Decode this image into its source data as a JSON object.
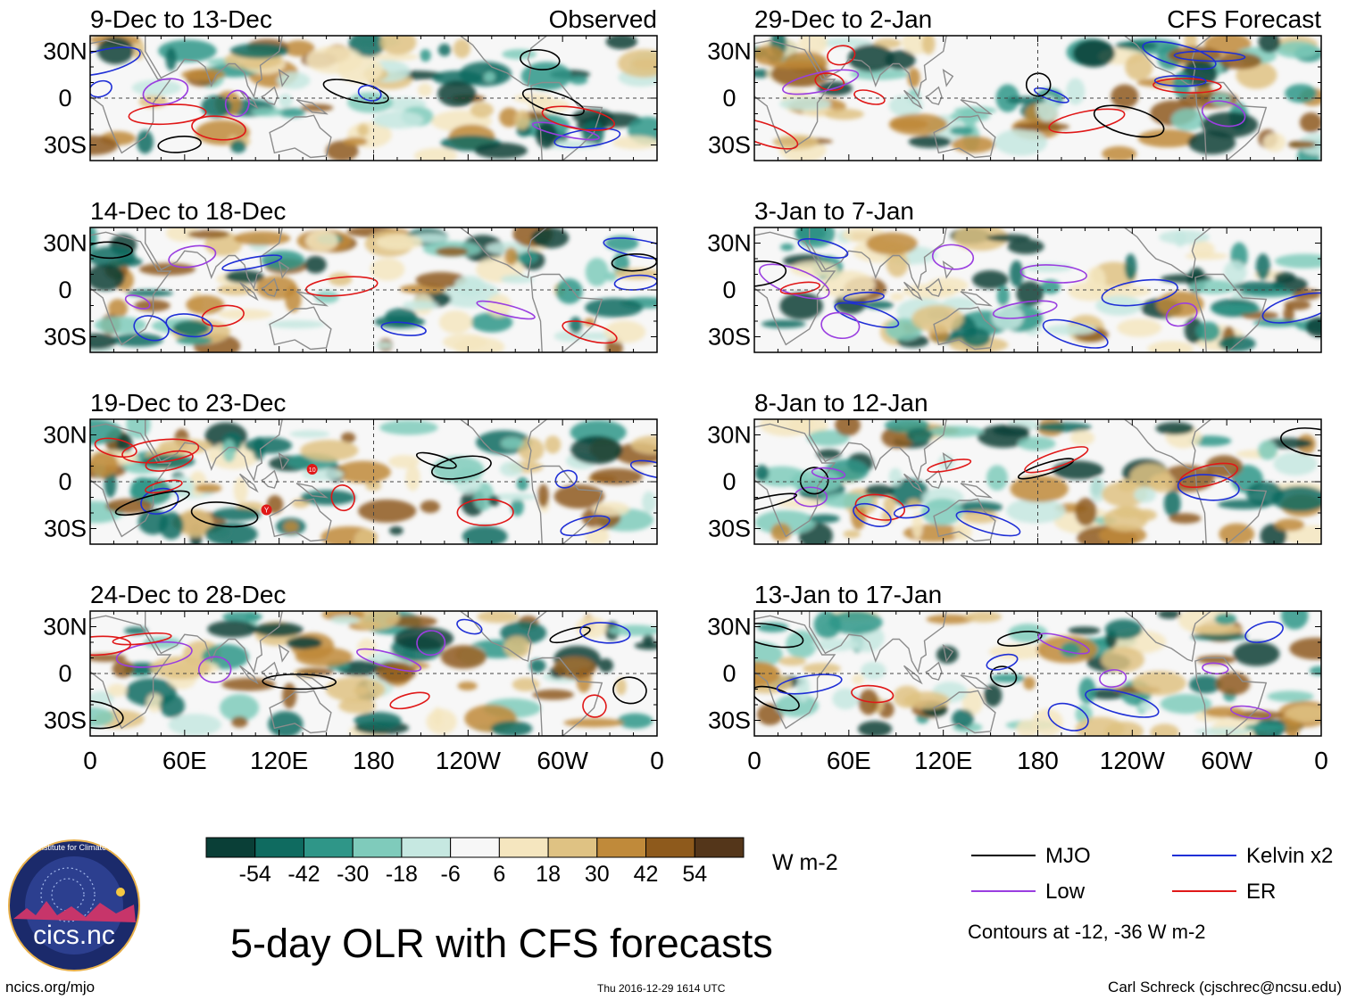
{
  "chart_data": {
    "type": "heatmap",
    "title": "5-day OLR with CFS forecasts",
    "units": "W m-2",
    "columns": [
      "Observed",
      "CFS Forecast"
    ],
    "x_ticks": [
      "0",
      "60E",
      "120E",
      "180",
      "120W",
      "60W",
      "0"
    ],
    "y_ticks": [
      "30N",
      "0",
      "30S"
    ],
    "lat_range": [
      -40,
      40
    ],
    "lon_range": [
      0,
      360
    ],
    "panels": [
      {
        "period": "9-Dec to 13-Dec",
        "label": "Observed",
        "column": "left",
        "row": 0
      },
      {
        "period": "14-Dec to 18-Dec",
        "label": "",
        "column": "left",
        "row": 1
      },
      {
        "period": "19-Dec to 23-Dec",
        "label": "",
        "column": "left",
        "row": 2
      },
      {
        "period": "24-Dec to 28-Dec",
        "label": "",
        "column": "left",
        "row": 3
      },
      {
        "period": "29-Dec to 2-Jan",
        "label": "CFS Forecast",
        "column": "right",
        "row": 0
      },
      {
        "period": "3-Jan to 7-Jan",
        "label": "",
        "column": "right",
        "row": 1
      },
      {
        "period": "8-Jan to 12-Jan",
        "label": "",
        "column": "right",
        "row": 2
      },
      {
        "period": "13-Jan to 17-Jan",
        "label": "",
        "column": "right",
        "row": 3
      }
    ],
    "colorbar": {
      "labels": [
        "-54",
        "-42",
        "-30",
        "-18",
        "-6",
        "6",
        "18",
        "30",
        "42",
        "54"
      ],
      "colors": [
        "#0a3f37",
        "#0f6b60",
        "#2f9688",
        "#7fcbbb",
        "#c6e8e1",
        "#f7f7f7",
        "#f5e6bf",
        "#dfc283",
        "#c08a3a",
        "#8e5a1c",
        "#54361a"
      ]
    },
    "legend": [
      {
        "name": "MJO",
        "color": "#000000"
      },
      {
        "name": "Kelvin x2",
        "color": "#1f2fd6"
      },
      {
        "name": "Low",
        "color": "#9a3ee0"
      },
      {
        "name": "ER",
        "color": "#e01818"
      }
    ],
    "contours_note": "Contours at -12, -36 W m-2"
  },
  "footer": {
    "left": "ncics.org/mjo",
    "center": "Thu 2016-12-29 1614 UTC",
    "right": "Carl Schreck (cjschrec@ncsu.edu)"
  },
  "logo": {
    "text": "cics.nc",
    "ring_text": "Cooperative Institute for Climate and Satellites"
  },
  "markers": [
    "Y",
    "10"
  ]
}
